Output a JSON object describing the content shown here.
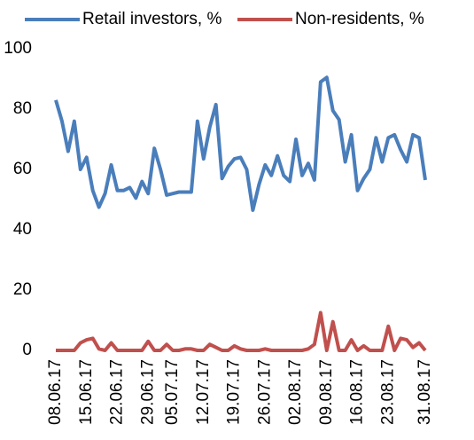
{
  "chart_data": {
    "type": "line",
    "categories": [
      "08.06.17",
      null,
      null,
      null,
      null,
      "15.06.17",
      null,
      null,
      null,
      null,
      "22.06.17",
      null,
      null,
      null,
      null,
      "29.06.17",
      null,
      null,
      null,
      "05.07.17",
      null,
      null,
      null,
      null,
      "12.07.17",
      null,
      null,
      null,
      null,
      "19.07.17",
      null,
      null,
      null,
      null,
      "26.07.17",
      null,
      null,
      null,
      null,
      "02.08.17",
      null,
      null,
      null,
      null,
      "09.08.17",
      null,
      null,
      null,
      null,
      "16.08.17",
      null,
      null,
      null,
      null,
      "23.08.17",
      null,
      null,
      null,
      null,
      null,
      "31.08.17"
    ],
    "series": [
      {
        "name": "Retail investors, %",
        "color": "#4a7ebb",
        "values": [
          83,
          76,
          66,
          76,
          60,
          64,
          53,
          47.5,
          52,
          61.5,
          53,
          53,
          54,
          50.5,
          56,
          52,
          67,
          60,
          51.5,
          52,
          52.5,
          52.5,
          52.5,
          76,
          63.5,
          74,
          81.5,
          57,
          61,
          63.5,
          64,
          60,
          46.5,
          55,
          61.5,
          58,
          64.5,
          58,
          56,
          70,
          58,
          62,
          56.5,
          89,
          90.5,
          79.5,
          76.5,
          62.5,
          71.5,
          53,
          57,
          60,
          70.5,
          62.5,
          70.5,
          71.5,
          66.5,
          62.5,
          71.5,
          70.5,
          56.5
        ]
      },
      {
        "name": "Non-residents, %",
        "color": "#c0504d",
        "values": [
          0,
          0,
          0,
          0,
          2.5,
          3.5,
          4,
          0.5,
          0,
          2.5,
          0,
          0,
          0,
          0,
          0,
          3,
          0,
          0,
          2,
          0,
          0,
          0.5,
          0.5,
          0,
          0,
          2,
          1,
          0,
          0,
          1.5,
          0.5,
          0,
          0,
          0,
          0.5,
          0,
          0,
          0,
          0,
          0,
          0,
          0.5,
          2,
          12.5,
          0,
          9.5,
          0,
          0,
          3.5,
          0,
          1.5,
          0,
          0,
          0,
          8,
          0,
          4,
          3.5,
          1,
          2.5,
          0
        ]
      }
    ],
    "ylim": [
      0,
      100
    ],
    "yticks": [
      0,
      20,
      40,
      60,
      80,
      100
    ],
    "legend": "top"
  }
}
